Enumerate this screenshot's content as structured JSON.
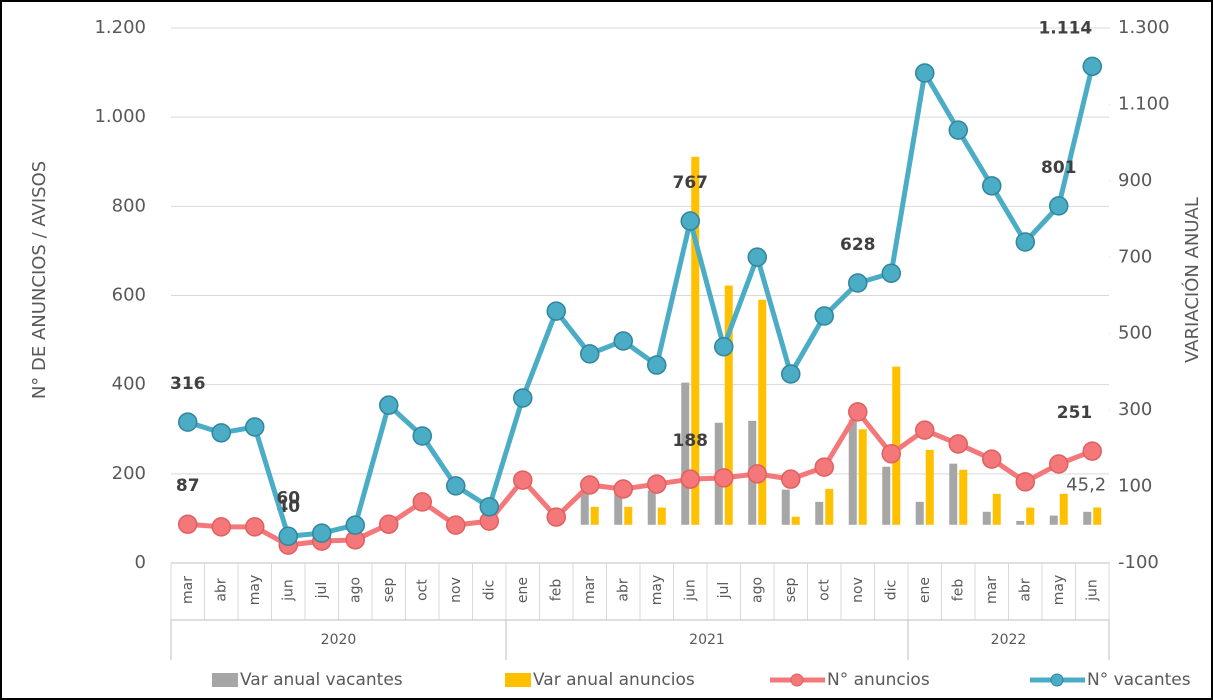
{
  "chart_data": {
    "type": "combo",
    "ylabel": "N° DE ANUNCIOS / AVISOS",
    "y2label": "VARIACIÓN ANUAL",
    "categories": [
      "mar",
      "abr",
      "may",
      "jun",
      "jul",
      "ago",
      "sep",
      "oct",
      "nov",
      "dic",
      "ene",
      "feb",
      "mar",
      "abr",
      "may",
      "jun",
      "jul",
      "ago",
      "sep",
      "oct",
      "nov",
      "dic",
      "ene",
      "feb",
      "mar",
      "abr",
      "may",
      "jun"
    ],
    "groups": [
      {
        "label": "2020",
        "count": 10
      },
      {
        "label": "2021",
        "count": 12
      },
      {
        "label": "2022",
        "count": 6
      }
    ],
    "ylim": [
      0,
      1200
    ],
    "yticks": [
      0,
      200,
      400,
      600,
      800,
      {
        "value": 1000,
        "label": "1.000"
      },
      {
        "value": 1200,
        "label": "1.200"
      }
    ],
    "y2lim": [
      -100,
      1300
    ],
    "y2ticks": [
      -100,
      100,
      300,
      500,
      700,
      900,
      {
        "value": 1100,
        "label": "1.100"
      },
      {
        "value": 1300,
        "label": "1.300"
      }
    ],
    "grid": true,
    "legend": "bottom",
    "series": [
      {
        "name": "Var anual vacantes",
        "kind": "bar",
        "axis": "y2",
        "color": "#a6a6a6",
        "values": [
          null,
          null,
          null,
          null,
          null,
          null,
          null,
          null,
          null,
          null,
          null,
          null,
          90,
          95,
          90,
          372,
          267,
          272,
          92,
          60,
          275,
          152,
          60,
          160,
          34,
          10,
          24,
          34
        ]
      },
      {
        "name": "Var anual anuncios",
        "kind": "bar",
        "axis": "y2",
        "color": "#ffc000",
        "values": [
          null,
          null,
          null,
          null,
          null,
          null,
          null,
          null,
          null,
          null,
          null,
          null,
          47,
          47,
          45,
          963,
          626,
          589,
          21,
          94,
          250,
          414,
          196,
          144,
          81,
          45,
          81,
          45.2
        ],
        "value_labels": [
          null,
          null,
          null,
          null,
          null,
          null,
          null,
          null,
          null,
          null,
          null,
          null,
          null,
          null,
          null,
          null,
          null,
          null,
          null,
          null,
          null,
          null,
          null,
          null,
          null,
          null,
          null,
          "45,2"
        ]
      },
      {
        "name": "N° anuncios",
        "kind": "line",
        "color": "#f4777a",
        "values": [
          87,
          81,
          81,
          40,
          49,
          52,
          87,
          137,
          85,
          94,
          186,
          103,
          175,
          166,
          177,
          188,
          191,
          200,
          188,
          215,
          339,
          245,
          298,
          267,
          233,
          182,
          222,
          251
        ],
        "value_labels": [
          "87",
          null,
          null,
          "40",
          null,
          null,
          null,
          null,
          null,
          null,
          null,
          null,
          null,
          null,
          null,
          "188",
          null,
          null,
          null,
          null,
          null,
          null,
          null,
          null,
          null,
          null,
          null,
          "251"
        ]
      },
      {
        "name": "N° vacantes",
        "kind": "line",
        "color": "#4bacc6",
        "values": [
          316,
          292,
          305,
          60,
          67,
          85,
          354,
          285,
          173,
          126,
          370,
          565,
          469,
          498,
          444,
          767,
          485,
          686,
          424,
          554,
          628,
          650,
          1099,
          971,
          846,
          720,
          801,
          1114
        ],
        "value_labels": [
          "316",
          null,
          null,
          "60",
          null,
          null,
          null,
          null,
          null,
          null,
          null,
          null,
          null,
          null,
          null,
          "767",
          null,
          null,
          null,
          null,
          "628",
          null,
          null,
          null,
          null,
          null,
          "801",
          "1.114"
        ]
      }
    ]
  }
}
